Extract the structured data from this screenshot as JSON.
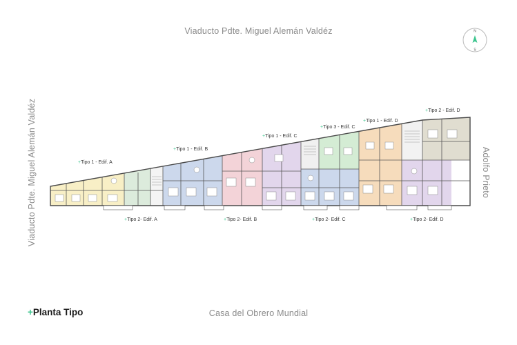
{
  "streets": {
    "top": "Viaducto Pdte. Miguel Alemán Valdéz",
    "left": "Viaducto Pdte. Miguel Alemán Valdéz",
    "right": "Adolfo Prieto",
    "bottom": "Casa del Obrero Mundial"
  },
  "title": {
    "prefix": "+",
    "text": "Planta Tipo"
  },
  "compass": {
    "north": "N",
    "south": "S"
  },
  "units_top": [
    {
      "prefix": "+",
      "text": "Tipo 1 - Edif. A"
    },
    {
      "prefix": "+",
      "text": "Tipo 1 - Edif. B"
    },
    {
      "prefix": "+",
      "text": "Tipo 1 - Edif. C"
    },
    {
      "prefix": "+",
      "text": "Tipo 3 - Edif. C"
    },
    {
      "prefix": "+",
      "text": "Tipo 1 - Edif. D"
    },
    {
      "prefix": "+",
      "text": "Tipo 2 - Edif. D"
    }
  ],
  "units_bottom": [
    {
      "prefix": "+",
      "text": "Tipo 2- Edif. A"
    },
    {
      "prefix": "+",
      "text": "Tipo 2- Edif. B"
    },
    {
      "prefix": "+",
      "text": "Tipo 2- Edif. C"
    },
    {
      "prefix": "+",
      "text": "Tipo 2- Edif. D"
    }
  ],
  "colors": {
    "accent": "#3cc58e",
    "yellow": "#f8efc6",
    "mint": "#dcebdc",
    "blue": "#ccd8ec",
    "pink": "#f3d3d8",
    "lavender": "#e2d6ec",
    "green": "#d4ecd4",
    "peach": "#f6dcbc",
    "grey": "#e0ddd0",
    "wall": "#4a4a4a"
  }
}
